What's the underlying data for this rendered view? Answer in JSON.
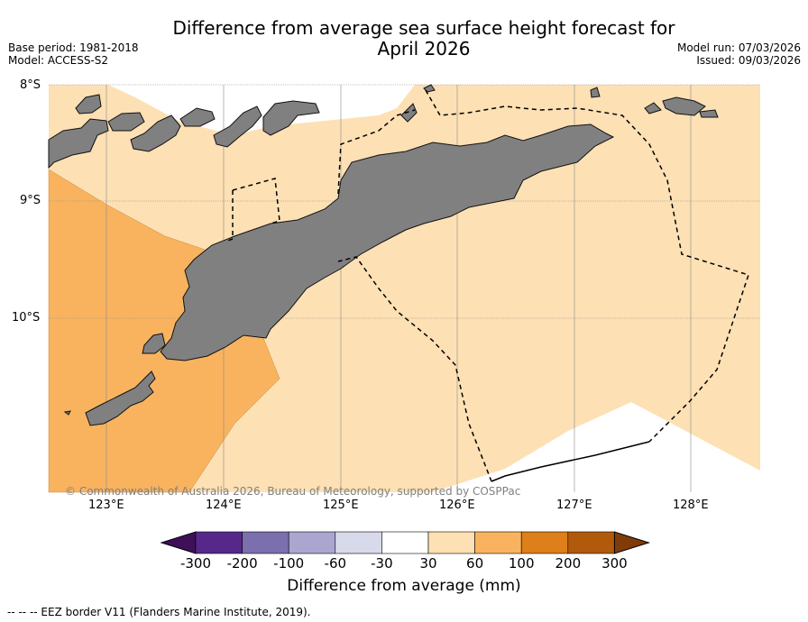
{
  "title": {
    "line1": "Difference from average sea surface height forecast for",
    "line2": "April 2026"
  },
  "meta": {
    "base_period": "Base period: 1981-2018",
    "model": "Model: ACCESS-S2",
    "model_run": "Model run: 07/03/2026",
    "issued": "Issued: 09/03/2026"
  },
  "axes": {
    "lat_labels": [
      "8°S",
      "9°S",
      "10°S"
    ],
    "lon_labels": [
      "123°E",
      "124°E",
      "125°E",
      "126°E",
      "127°E",
      "128°E"
    ]
  },
  "copyright": "© Commonwealth of Australia 2026, Bureau of Meteorology, supported by COSPPac",
  "colorbar": {
    "ticks": [
      "-300",
      "-200",
      "-100",
      "-60",
      "-30",
      "30",
      "60",
      "100",
      "200",
      "300"
    ],
    "colors": [
      "#3f0f5a",
      "#56288a",
      "#7b6fad",
      "#aaa6cf",
      "#d8d9ea",
      "#ffffff",
      "#fde0b4",
      "#f9b35f",
      "#de7f19",
      "#b15a0c",
      "#7f3b08"
    ],
    "label": "Difference from average (mm)"
  },
  "map_colors": {
    "land": "#808080",
    "light_orange": "#fde0b4",
    "orange": "#f9b35f",
    "grid": "#aaaaaa"
  },
  "footnote": "--  --  -- EEZ border V11 (Flanders Marine Institute, 2019)."
}
